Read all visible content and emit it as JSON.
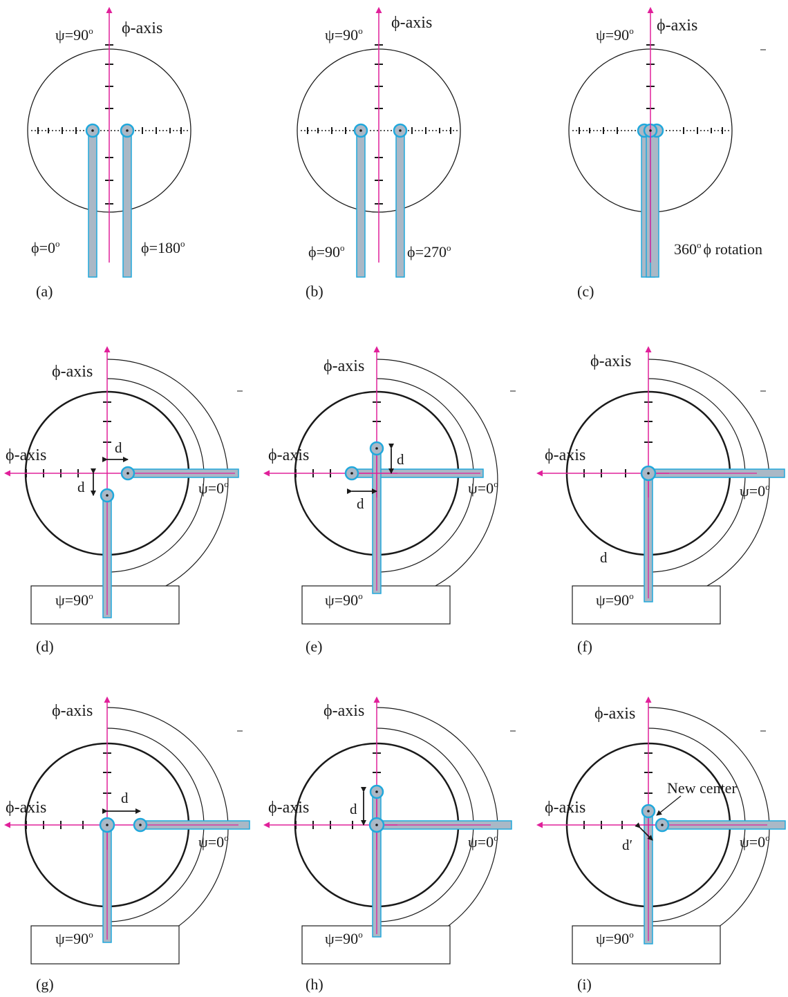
{
  "colors": {
    "axis": "#e0209a",
    "beam_stroke": "#20a8dc",
    "beam_fill": "#aab8c6",
    "ink": "#1a1a1a"
  },
  "labels": {
    "phi_axis": "ϕ-axis",
    "psi_90": "ψ=90",
    "psi_0": "ψ=0",
    "degree": "o",
    "phi_0": "ϕ=0",
    "phi_180": "ϕ=180",
    "phi_90": "ϕ=90",
    "phi_270": "ϕ=270",
    "rotation_deg": "360",
    "rotation_text": "ϕ rotation",
    "d": "d",
    "d_prime": "d′",
    "new_center": "New center"
  },
  "panels": [
    {
      "id": "a",
      "label": "(a)"
    },
    {
      "id": "b",
      "label": "(b)"
    },
    {
      "id": "c",
      "label": "(c)"
    },
    {
      "id": "d",
      "label": "(d)"
    },
    {
      "id": "e",
      "label": "(e)"
    },
    {
      "id": "f",
      "label": "(f)"
    },
    {
      "id": "g",
      "label": "(g)"
    },
    {
      "id": "h",
      "label": "(h)"
    },
    {
      "id": "i",
      "label": "(i)"
    }
  ]
}
